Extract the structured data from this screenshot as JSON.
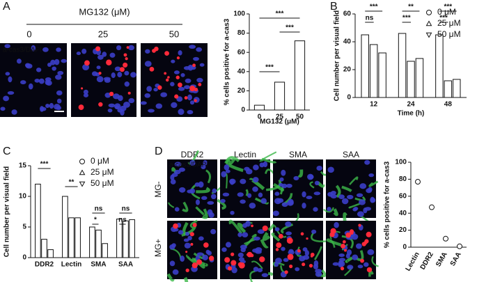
{
  "figure": {
    "panel_labels": [
      "A",
      "B",
      "C",
      "D"
    ],
    "panel_a": {
      "heading": "MG132 (μM)",
      "columns": [
        "0",
        "25",
        "50"
      ],
      "stain": "a-cas3/DAPI"
    },
    "panel_d": {
      "columns": [
        "DDR2",
        "Lectin",
        "SMA",
        "SAA"
      ],
      "rows": [
        "MG-",
        "MG+"
      ],
      "stain": "a-cas3/DAPI"
    }
  },
  "chart_data": [
    {
      "type": "bar",
      "y_label": "% cells positive for a-cas3",
      "x_label": "MG132 (μM)",
      "categories": [
        "0",
        "25",
        "50"
      ],
      "values": [
        5,
        29,
        72
      ],
      "color": "#ffffff",
      "ylim": [
        0,
        100
      ],
      "yticks": [
        0,
        20,
        40,
        60,
        80,
        100
      ],
      "annotations": [
        "***",
        "***",
        "***"
      ]
    },
    {
      "type": "bar",
      "y_label": "Cell number per visual field",
      "x_label": "Time (h)",
      "categories": [
        "12",
        "24",
        "48"
      ],
      "series": [
        {
          "name": "0 μM",
          "color": "#ffffff",
          "marker": "circle",
          "values": [
            45,
            46,
            45
          ]
        },
        {
          "name": "25 μM",
          "color": "#ffffff",
          "marker": "triangle-up",
          "values": [
            38,
            26,
            12
          ]
        },
        {
          "name": "50 μM",
          "color": "#ffffff",
          "marker": "triangle-down",
          "values": [
            32,
            28,
            13
          ]
        }
      ],
      "ylim": [
        0,
        60
      ],
      "yticks": [
        0,
        20,
        40,
        60
      ],
      "annotations": [
        "***",
        "ns",
        "**",
        "***",
        "***",
        "***"
      ]
    },
    {
      "type": "bar",
      "y_label": "Cell number per visual field",
      "categories": [
        "DDR2",
        "Lectin",
        "SMA",
        "SAA"
      ],
      "series": [
        {
          "name": "0 μM",
          "color": "#ffffff",
          "marker": "circle",
          "values": [
            12,
            10,
            5,
            6.3
          ]
        },
        {
          "name": "25 μM",
          "color": "#ffffff",
          "marker": "triangle-up",
          "values": [
            3,
            6.5,
            4.5,
            6
          ]
        },
        {
          "name": "50 μM",
          "color": "#ffffff",
          "marker": "triangle-down",
          "values": [
            1.3,
            6.5,
            2.3,
            6.2
          ]
        }
      ],
      "ylim": [
        0,
        15
      ],
      "yticks": [
        0,
        5,
        10,
        15
      ],
      "annotations": [
        "***",
        "**",
        "ns",
        "*",
        "ns",
        "ns"
      ]
    },
    {
      "type": "dot",
      "y_label": "% cells positive for a-cas3",
      "categories": [
        "Lectin",
        "DDR2",
        "SMA",
        "SAA"
      ],
      "values": [
        77,
        47,
        10,
        1
      ],
      "color": "#ffffff",
      "ylim": [
        0,
        100
      ],
      "yticks": [
        0,
        20,
        40,
        60,
        80,
        100
      ]
    }
  ]
}
